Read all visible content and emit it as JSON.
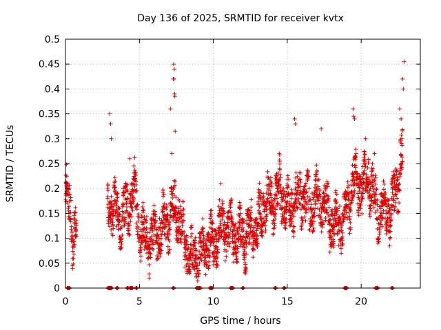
{
  "chart_data": {
    "type": "scatter",
    "title": "Day 136 of 2025, SRMTID for receiver kvtx",
    "xlabel": "GPS time / hours",
    "ylabel": "SRMTID / TECUs",
    "xlim": [
      0,
      24
    ],
    "ylim": [
      0,
      0.5
    ],
    "x_ticks": [
      0,
      5,
      10,
      15,
      20
    ],
    "y_ticks": [
      0,
      0.05,
      0.1,
      0.15,
      0.2,
      0.25,
      0.3,
      0.35,
      0.4,
      0.45,
      0.5
    ],
    "x_tick_labels": [
      "0",
      "5",
      "10",
      "15",
      "20"
    ],
    "y_tick_labels": [
      "0",
      "0.05",
      "0.1",
      "0.15",
      "0.2",
      "0.25",
      "0.3",
      "0.35",
      "0.4",
      "0.45",
      "0.5"
    ],
    "grid": true,
    "marker": "plus",
    "color": "#dd0000",
    "trend": [
      [
        0.0,
        0.19
      ],
      [
        0.3,
        0.16
      ],
      [
        0.5,
        0.11
      ],
      [
        0.7,
        0.12
      ],
      [
        2.9,
        0.17
      ],
      [
        3.3,
        0.16
      ],
      [
        3.7,
        0.14
      ],
      [
        4.2,
        0.16
      ],
      [
        4.6,
        0.2
      ],
      [
        5.0,
        0.13
      ],
      [
        5.5,
        0.09
      ],
      [
        6.0,
        0.11
      ],
      [
        6.5,
        0.12
      ],
      [
        7.0,
        0.14
      ],
      [
        7.3,
        0.16
      ],
      [
        7.7,
        0.15
      ],
      [
        8.0,
        0.09
      ],
      [
        8.5,
        0.06
      ],
      [
        9.0,
        0.06
      ],
      [
        9.5,
        0.09
      ],
      [
        10.0,
        0.09
      ],
      [
        10.5,
        0.12
      ],
      [
        11.0,
        0.12
      ],
      [
        11.5,
        0.11
      ],
      [
        12.0,
        0.1
      ],
      [
        12.5,
        0.11
      ],
      [
        13.0,
        0.13
      ],
      [
        13.5,
        0.17
      ],
      [
        14.0,
        0.17
      ],
      [
        14.5,
        0.2
      ],
      [
        15.0,
        0.16
      ],
      [
        15.5,
        0.17
      ],
      [
        16.0,
        0.19
      ],
      [
        16.5,
        0.16
      ],
      [
        17.0,
        0.18
      ],
      [
        17.5,
        0.17
      ],
      [
        18.0,
        0.13
      ],
      [
        18.5,
        0.13
      ],
      [
        19.0,
        0.15
      ],
      [
        19.5,
        0.22
      ],
      [
        20.0,
        0.2
      ],
      [
        20.5,
        0.23
      ],
      [
        21.0,
        0.16
      ],
      [
        21.5,
        0.16
      ],
      [
        22.0,
        0.15
      ],
      [
        22.5,
        0.22
      ],
      [
        22.8,
        0.28
      ]
    ],
    "gaps": [
      [
        0.75,
        2.85
      ]
    ],
    "spikes": [
      {
        "x": 0.05,
        "y": 0.21
      },
      {
        "x": 3.0,
        "y": 0.35
      },
      {
        "x": 3.05,
        "y": 0.33
      },
      {
        "x": 3.1,
        "y": 0.3
      },
      {
        "x": 4.35,
        "y": 0.26
      },
      {
        "x": 7.1,
        "y": 0.36
      },
      {
        "x": 7.2,
        "y": 0.27
      },
      {
        "x": 7.32,
        "y": 0.45
      },
      {
        "x": 7.36,
        "y": 0.44
      },
      {
        "x": 7.3,
        "y": 0.42
      },
      {
        "x": 7.34,
        "y": 0.42
      },
      {
        "x": 7.38,
        "y": 0.39
      },
      {
        "x": 7.4,
        "y": 0.385
      },
      {
        "x": 7.42,
        "y": 0.315
      },
      {
        "x": 10.5,
        "y": 0.21
      },
      {
        "x": 15.5,
        "y": 0.34
      },
      {
        "x": 15.55,
        "y": 0.33
      },
      {
        "x": 17.3,
        "y": 0.32
      },
      {
        "x": 19.45,
        "y": 0.36
      },
      {
        "x": 19.5,
        "y": 0.345
      },
      {
        "x": 19.55,
        "y": 0.34
      },
      {
        "x": 20.3,
        "y": 0.3
      },
      {
        "x": 20.9,
        "y": 0.27
      },
      {
        "x": 22.6,
        "y": 0.36
      },
      {
        "x": 22.7,
        "y": 0.34
      },
      {
        "x": 22.75,
        "y": 0.3
      },
      {
        "x": 22.8,
        "y": 0.42
      },
      {
        "x": 22.85,
        "y": 0.4
      },
      {
        "x": 22.9,
        "y": 0.455
      }
    ],
    "zero_points_x": [
      0.15,
      0.25,
      2.9,
      3.0,
      3.1,
      3.5,
      4.2,
      4.4,
      4.5,
      4.8,
      7.3,
      8.9,
      9.0,
      9.1,
      9.8,
      9.9,
      11.2,
      11.3,
      12.0,
      14.2,
      14.8,
      18.9,
      19.0,
      21.0,
      21.1,
      22.1
    ]
  }
}
